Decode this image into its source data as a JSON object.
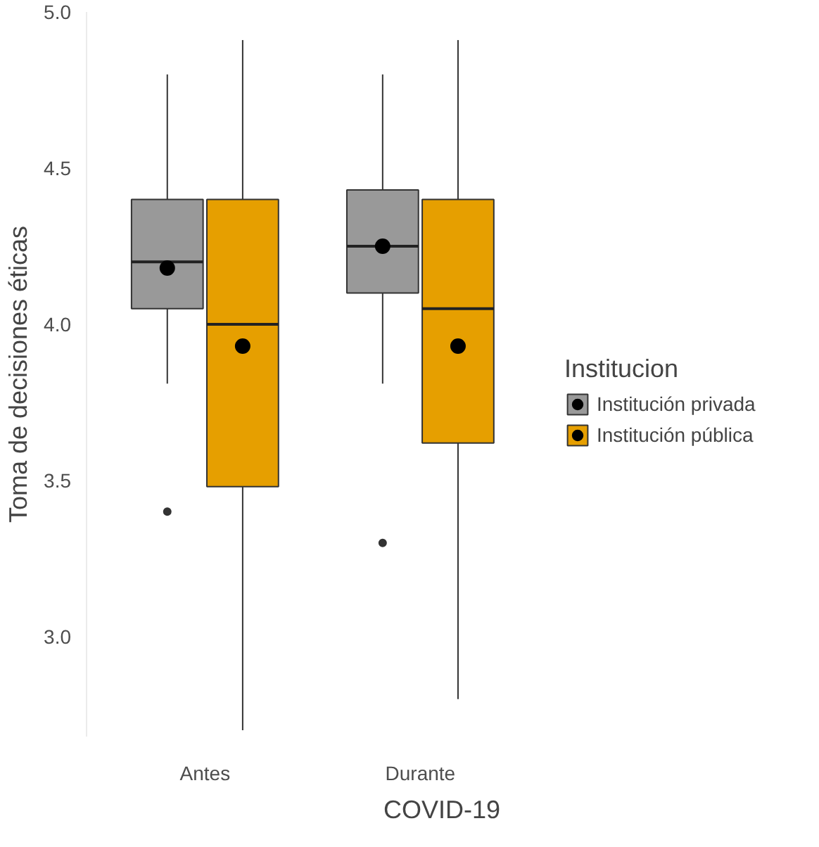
{
  "chart_data": {
    "type": "box",
    "xlabel": "COVID-19",
    "ylabel": "Toma de decisiones éticas",
    "legend_title": "Institucion",
    "categories": [
      "Antes",
      "Durante"
    ],
    "ylim": [
      2.68,
      5.0
    ],
    "yticks": [
      {
        "value": 3.0,
        "label": "3.0"
      },
      {
        "value": 3.5,
        "label": "3.5"
      },
      {
        "value": 4.0,
        "label": "4.0"
      },
      {
        "value": 4.5,
        "label": "4.5"
      },
      {
        "value": 5.0,
        "label": "5.0"
      }
    ],
    "grid": false,
    "legend": "right",
    "marker": "circle",
    "series": [
      {
        "name": "Institución privada",
        "color": "#999999",
        "boxes": [
          {
            "low": 3.81,
            "q1": 4.05,
            "median": 4.2,
            "q3": 4.4,
            "high": 4.8,
            "mean": 4.18,
            "outliers": [
              3.4
            ]
          },
          {
            "low": 3.81,
            "q1": 4.1,
            "median": 4.25,
            "q3": 4.43,
            "high": 4.8,
            "mean": 4.25,
            "outliers": [
              3.3
            ]
          }
        ]
      },
      {
        "name": "Institución pública",
        "color": "#e69f00",
        "boxes": [
          {
            "low": 2.7,
            "q1": 3.48,
            "median": 4.0,
            "q3": 4.4,
            "high": 4.91,
            "mean": 3.93
          },
          {
            "low": 2.8,
            "q1": 3.62,
            "median": 4.05,
            "q3": 4.4,
            "high": 4.91,
            "mean": 3.93
          }
        ]
      }
    ]
  }
}
